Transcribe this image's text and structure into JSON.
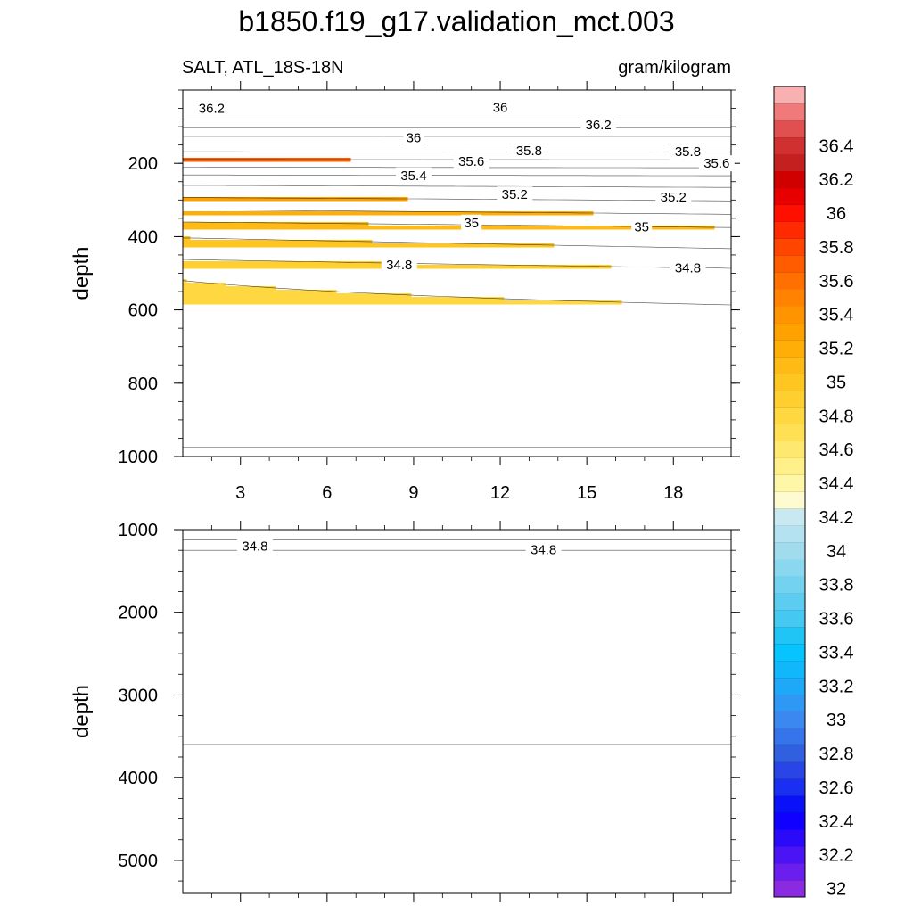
{
  "title": "b1850.f19_g17.validation_mct.003",
  "subtitle_left": "SALT, ATL_18S-18N",
  "subtitle_right": "gram/kilogram",
  "chart_data": [
    {
      "type": "contour",
      "panel": "upper",
      "ylabel": "depth",
      "xlabel": "",
      "xlim": [
        1,
        20
      ],
      "ylim": [
        0,
        1000
      ],
      "y_reversed": true,
      "x_ticks": [
        3,
        6,
        9,
        12,
        15,
        18
      ],
      "x_tick_labels": [
        "3",
        "6",
        "9",
        "12",
        "15",
        "18"
      ],
      "y_ticks": [
        200,
        400,
        600,
        800,
        1000
      ],
      "y_tick_labels": [
        "200",
        "400",
        "600",
        "800",
        "1000"
      ],
      "contour_labels": [
        {
          "text": "36.2",
          "x": 2.0,
          "y": 50
        },
        {
          "text": "36",
          "x": 12.0,
          "y": 47
        },
        {
          "text": "36.2",
          "x": 15.4,
          "y": 95
        },
        {
          "text": "36",
          "x": 9.0,
          "y": 130
        },
        {
          "text": "35.8",
          "x": 13.0,
          "y": 165
        },
        {
          "text": "35.8",
          "x": 18.5,
          "y": 168
        },
        {
          "text": "35.6",
          "x": 11.0,
          "y": 195
        },
        {
          "text": "35.6",
          "x": 19.5,
          "y": 200
        },
        {
          "text": "35.4",
          "x": 9.0,
          "y": 233
        },
        {
          "text": "35.2",
          "x": 12.5,
          "y": 285
        },
        {
          "text": "35.2",
          "x": 18.0,
          "y": 292
        },
        {
          "text": "35",
          "x": 11.0,
          "y": 362
        },
        {
          "text": "35",
          "x": 16.9,
          "y": 373
        },
        {
          "text": "34.8",
          "x": 8.5,
          "y": 477
        },
        {
          "text": "34.8",
          "x": 18.5,
          "y": 485
        }
      ]
    },
    {
      "type": "contour",
      "panel": "lower",
      "ylabel": "depth",
      "xlabel": "",
      "xlim": [
        1,
        20
      ],
      "ylim": [
        1000,
        5400
      ],
      "y_reversed": true,
      "x_ticks": [
        3,
        6,
        9,
        12,
        15,
        18
      ],
      "x_tick_labels": [],
      "y_ticks": [
        1000,
        2000,
        3000,
        4000,
        5000
      ],
      "y_tick_labels": [
        "1000",
        "2000",
        "3000",
        "4000",
        "5000"
      ],
      "contour_labels": [
        {
          "text": "34.8",
          "x": 3.5,
          "y": 1200
        },
        {
          "text": "34.8",
          "x": 13.5,
          "y": 1240
        }
      ]
    }
  ],
  "colorbar": {
    "levels": [
      32,
      32.1,
      32.2,
      32.3,
      32.4,
      32.5,
      32.6,
      32.7,
      32.8,
      32.9,
      33,
      33.1,
      33.2,
      33.3,
      33.4,
      33.5,
      33.6,
      33.7,
      33.8,
      33.9,
      34,
      34.1,
      34.2,
      34.3,
      34.4,
      34.5,
      34.6,
      34.7,
      34.8,
      34.9,
      35,
      35.1,
      35.2,
      35.3,
      35.4,
      35.5,
      35.6,
      35.7,
      35.8,
      35.9,
      36,
      36.1,
      36.2,
      36.3,
      36.4,
      36.5
    ],
    "tick_labels": [
      "32",
      "32.2",
      "32.4",
      "32.6",
      "32.8",
      "33",
      "33.2",
      "33.4",
      "33.6",
      "33.8",
      "34",
      "34.2",
      "34.4",
      "34.6",
      "34.8",
      "35",
      "35.2",
      "35.4",
      "35.6",
      "35.8",
      "36",
      "36.2",
      "36.4"
    ],
    "colors": [
      "#8a2be2",
      "#6a1fef",
      "#4a14f5",
      "#2a0af9",
      "#0f00ff",
      "#0a10f8",
      "#1a2ff0",
      "#2a45e6",
      "#3060e0",
      "#3574ea",
      "#3a88f0",
      "#2f98f5",
      "#1ea8f8",
      "#10b8fb",
      "#05c4fe",
      "#20c5f5",
      "#45c8f2",
      "#5ccdf0",
      "#72d2f0",
      "#8ad8ef",
      "#a0dcee",
      "#b4e2f0",
      "#c8e8f2",
      "#fffbd0",
      "#fff7a8",
      "#fff08a",
      "#ffe870",
      "#ffe055",
      "#ffd740",
      "#ffcf30",
      "#ffc520",
      "#ffba15",
      "#ffae08",
      "#ffa200",
      "#ff9300",
      "#ff8200",
      "#ff7000",
      "#ff5c00",
      "#ff4500",
      "#ff2a00",
      "#ff0f00",
      "#e80000",
      "#d00000",
      "#c42020",
      "#d03030",
      "#e05050",
      "#f07a7a",
      "#f8b0b0"
    ]
  }
}
